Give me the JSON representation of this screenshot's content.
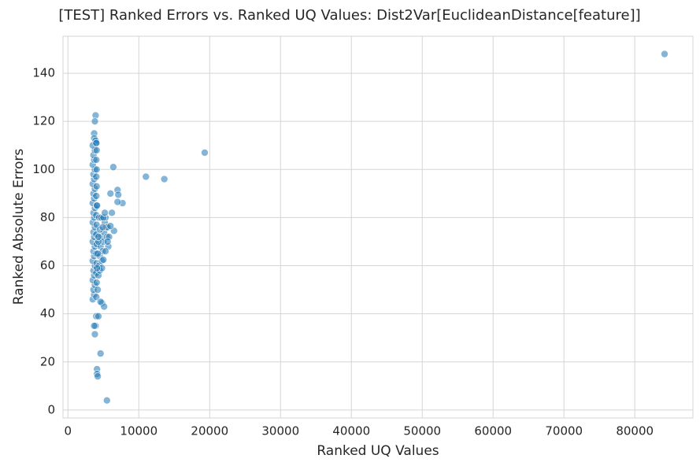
{
  "chart_data": {
    "type": "scatter",
    "title": "[TEST] Ranked Errors vs. Ranked UQ Values: Dist2Var[EuclideanDistance[feature]]",
    "x_label": "Ranked UQ Values",
    "y_label": "Ranked Absolute Errors",
    "color": "#1f77b4",
    "alpha": 0.55,
    "grid": true,
    "xlim": [
      -700,
      88200
    ],
    "xticks": [
      0,
      10000,
      20000,
      30000,
      40000,
      50000,
      60000,
      70000,
      80000
    ],
    "ylim": [
      -3.3,
      155.4
    ],
    "yticks": [
      0,
      20,
      40,
      60,
      80,
      100,
      120,
      140
    ],
    "x": [
      84200,
      19300,
      11000,
      13600,
      6400,
      7000,
      7100,
      6000,
      7700,
      7000,
      6200,
      6500,
      5500,
      4600,
      4100,
      4100,
      4200,
      3900,
      3800,
      3700,
      4000,
      4300,
      4800,
      5100,
      3900,
      3800,
      3700,
      3700,
      3900,
      4000,
      3500,
      3700,
      3600,
      3800,
      3500,
      3700,
      3600,
      3800,
      3500,
      3700,
      3600,
      3800,
      3500,
      3700,
      3600,
      3800,
      3500,
      3700,
      3600,
      3800,
      3500,
      3700,
      3600,
      3800,
      3500,
      3700,
      3600,
      3800,
      3500,
      3700,
      3600,
      3800,
      3500,
      4000,
      4050,
      4000,
      4050,
      4000,
      4050,
      4000,
      4050,
      4000,
      4050,
      4000,
      4050,
      4000,
      4050,
      4000,
      4050,
      4000,
      4300,
      4400,
      4500,
      4600,
      4700,
      4800,
      4900,
      5000,
      5100,
      5200,
      5300,
      5400,
      5500,
      5600,
      5700,
      5800,
      4400,
      4700,
      5000,
      5200,
      4500,
      4600,
      4200,
      4200,
      4500,
      5000,
      4800,
      5300,
      5600,
      6000,
      4300,
      4900,
      4100,
      4100,
      4300
    ],
    "values": [
      148,
      107,
      97,
      96,
      101,
      91.5,
      89.5,
      90,
      86,
      86.5,
      82,
      74.5,
      4,
      23.5,
      17,
      15,
      14,
      35,
      31.5,
      35,
      39,
      39,
      44.5,
      43,
      122.5,
      120,
      115,
      113,
      112,
      111,
      46,
      48,
      50,
      52,
      54,
      56,
      58,
      60,
      62,
      64,
      66,
      68,
      70,
      72,
      74,
      76,
      78,
      80,
      82,
      84,
      86,
      88,
      90,
      92,
      94,
      96,
      98,
      100,
      102,
      104,
      106,
      108,
      110,
      47,
      53,
      57,
      61,
      65,
      69,
      73,
      77,
      81,
      85,
      89,
      93,
      97,
      100,
      104,
      108,
      111,
      56,
      60,
      64,
      68,
      72,
      62,
      66,
      70,
      74,
      78,
      80,
      76,
      72,
      76,
      68,
      72,
      80,
      80,
      80,
      82,
      58,
      45,
      50,
      65,
      75,
      62.5,
      59,
      66,
      70,
      76.5,
      70,
      76,
      59,
      85,
      72
    ]
  }
}
